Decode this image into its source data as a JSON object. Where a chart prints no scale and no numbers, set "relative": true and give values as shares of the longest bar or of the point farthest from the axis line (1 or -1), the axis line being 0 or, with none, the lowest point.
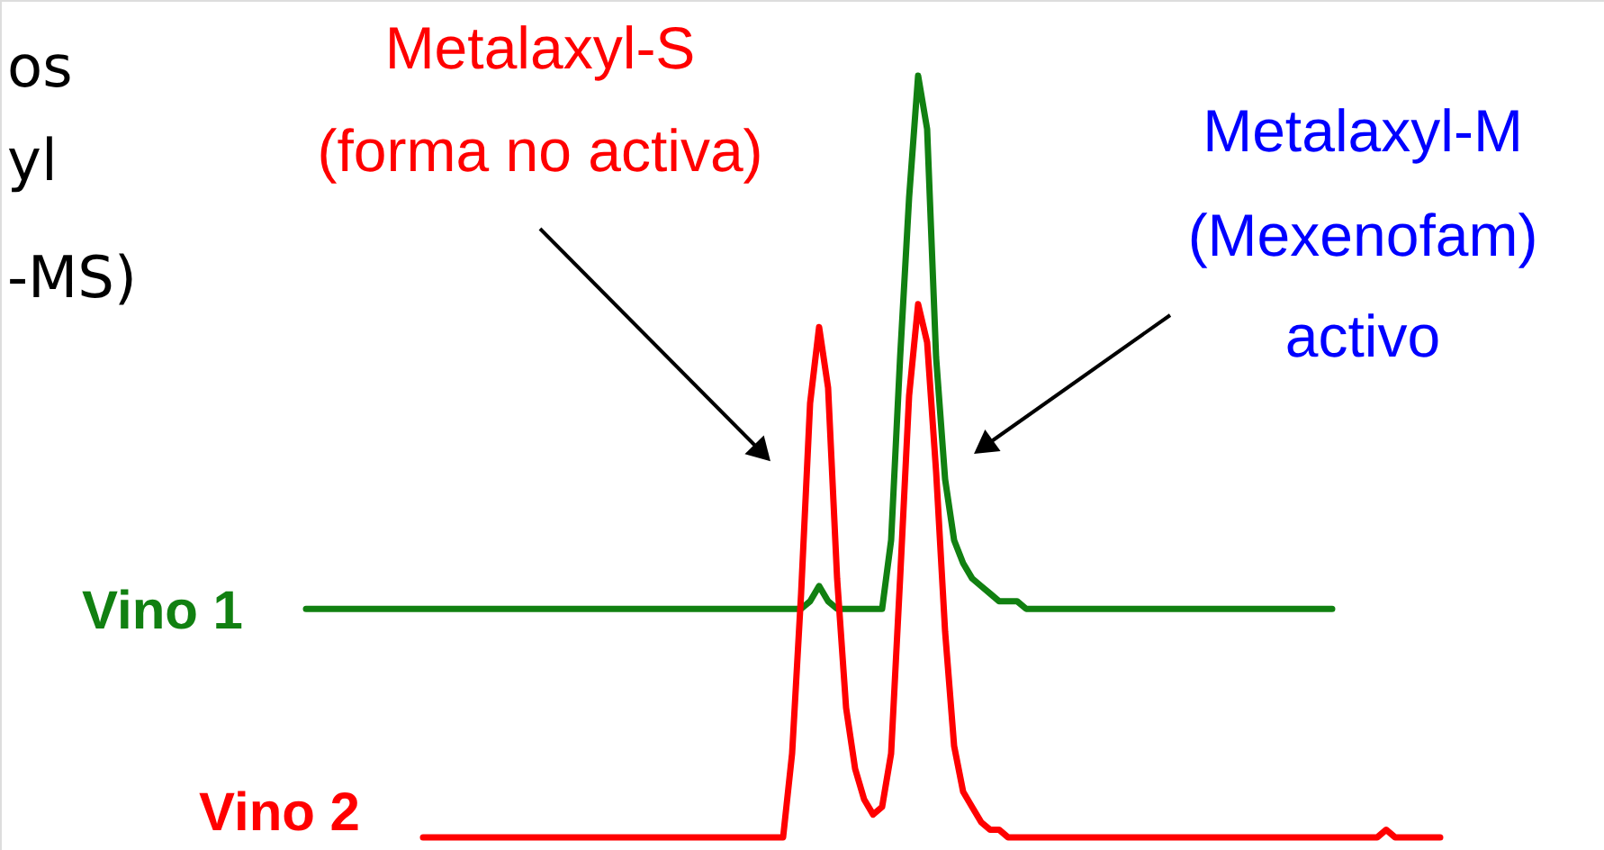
{
  "chart_data": {
    "type": "line",
    "relative": true,
    "categories": [
      null,
      null,
      null,
      null,
      null,
      null,
      null,
      null,
      null,
      null,
      null,
      null,
      null,
      null,
      null,
      null,
      null,
      null,
      null,
      null,
      null,
      null,
      null,
      null,
      null,
      null,
      null,
      null,
      null,
      null,
      null,
      null,
      null,
      null,
      null,
      null,
      null,
      null,
      null,
      null,
      null,
      null,
      null,
      null,
      null,
      null,
      null,
      null,
      null,
      null,
      null,
      null,
      null,
      null,
      null,
      null,
      null,
      null,
      null,
      null,
      null,
      null,
      null,
      null,
      null,
      null,
      null,
      null,
      null,
      null,
      null,
      null,
      null,
      null,
      null,
      null,
      null,
      null,
      null,
      null,
      null,
      null,
      null,
      null,
      null,
      null,
      null,
      null,
      null,
      null,
      null,
      null,
      null,
      null,
      null,
      null,
      null,
      null,
      null,
      null,
      null,
      null,
      null,
      null,
      null,
      null,
      null,
      null,
      null,
      null,
      null,
      null,
      null,
      null,
      null,
      null,
      null,
      null,
      null,
      null,
      null,
      null,
      null,
      null,
      null,
      null,
      null,
      null
    ],
    "series": [
      {
        "name": "Vino 1",
        "color": "#118011",
        "values": [
          0.3,
          0.3,
          0.3,
          0.3,
          0.3,
          0.3,
          0.3,
          0.3,
          0.3,
          0.3,
          0.3,
          0.3,
          0.3,
          0.3,
          0.3,
          0.3,
          0.3,
          0.3,
          0.3,
          0.3,
          0.3,
          0.3,
          0.3,
          0.3,
          0.3,
          0.3,
          0.3,
          0.3,
          0.3,
          0.3,
          0.3,
          0.3,
          0.3,
          0.3,
          0.3,
          0.3,
          0.3,
          0.3,
          0.3,
          0.3,
          0.3,
          0.3,
          0.3,
          0.3,
          0.3,
          0.3,
          0.3,
          0.3,
          0.3,
          0.3,
          0.3,
          0.3,
          0.3,
          0.3,
          0.3,
          0.3,
          0.31,
          0.33,
          0.31,
          0.3,
          0.3,
          0.3,
          0.3,
          0.3,
          0.3,
          0.39,
          0.63,
          0.84,
          1.0,
          0.93,
          0.63,
          0.47,
          0.39,
          0.36,
          0.34,
          0.33,
          0.32,
          0.31,
          0.31,
          0.31,
          0.3,
          0.3,
          0.3,
          0.3,
          0.3,
          0.3,
          0.3,
          0.3,
          0.3,
          0.3,
          0.3,
          0.3,
          0.3,
          0.3,
          0.3,
          0.3,
          0.3,
          0.3,
          0.3,
          0.3,
          0.3,
          0.3,
          0.3,
          0.3,
          0.3,
          0.3,
          0.3,
          0.3,
          0.3,
          0.3,
          0.3,
          0.3,
          0.3,
          0.3,
          0.3,
          null,
          null,
          null,
          null,
          null,
          null,
          null,
          null,
          null,
          null,
          null,
          null,
          null
        ]
      },
      {
        "name": "Vino 2",
        "color": "#ff0000",
        "values": [
          null,
          null,
          null,
          null,
          null,
          null,
          null,
          null,
          null,
          null,
          null,
          null,
          null,
          0,
          0,
          0,
          0,
          0,
          0,
          0,
          0,
          0,
          0,
          0,
          0,
          0,
          0,
          0,
          0,
          0,
          0,
          0,
          0,
          0,
          0,
          0,
          0,
          0,
          0,
          0,
          0,
          0,
          0,
          0,
          0,
          0,
          0,
          0,
          0,
          0,
          0,
          0,
          0,
          0,
          0.11,
          0.32,
          0.57,
          0.67,
          0.59,
          0.34,
          0.17,
          0.09,
          0.05,
          0.03,
          0.04,
          0.11,
          0.34,
          0.58,
          0.7,
          0.65,
          0.48,
          0.27,
          0.12,
          0.06,
          0.04,
          0.02,
          0.01,
          0.01,
          0,
          0,
          0,
          0,
          0,
          0,
          0,
          0,
          0,
          0,
          0,
          0,
          0,
          0,
          0,
          0,
          0,
          0,
          0,
          0,
          0,
          0,
          0,
          0,
          0,
          0,
          0,
          0,
          0,
          0,
          0,
          0,
          0,
          0,
          0,
          0,
          0,
          0,
          0,
          0,
          0,
          0,
          0.01,
          0,
          0,
          0,
          0,
          0,
          0,
          null
        ]
      }
    ],
    "annotations": [
      "Metalaxyl-S",
      "(forma no activa)",
      "Metalaxyl-M",
      "(Mexenofam)",
      "activo",
      "os",
      "yl",
      "-MS)"
    ]
  }
}
